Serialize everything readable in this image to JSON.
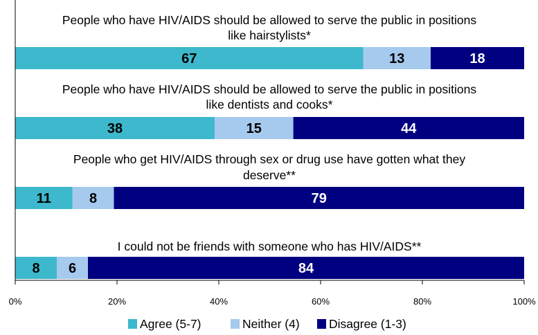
{
  "chart_data": {
    "type": "bar",
    "orientation": "horizontal",
    "stacked": true,
    "title": "",
    "xlabel": "",
    "ylabel": "",
    "xlim": [
      0,
      100
    ],
    "grid": false,
    "legend_position": "bottom",
    "x_ticks": [
      "0%",
      "20%",
      "40%",
      "60%",
      "80%",
      "100%"
    ],
    "categories": [
      [
        "People who have HIV/AIDS should be allowed to serve the public in positions",
        "like hairstylists*"
      ],
      [
        "People who have HIV/AIDS should be allowed to serve the public in positions",
        "like dentists and cooks*"
      ],
      [
        "People who get HIV/AIDS through sex or drug use have gotten what they",
        "deserve**"
      ],
      [
        "I could not be friends with someone who has HIV/AIDS**"
      ]
    ],
    "series": [
      {
        "name": "Agree (5-7)",
        "color": "#3db8cc",
        "label_color": "#000000",
        "values": [
          67,
          38,
          11,
          8
        ]
      },
      {
        "name": "Neither (4)",
        "color": "#a6c9ee",
        "label_color": "#000000",
        "values": [
          13,
          15,
          8,
          6
        ]
      },
      {
        "name": "Disagree (1-3)",
        "color": "#000080",
        "label_color": "#ffffff",
        "values": [
          18,
          44,
          79,
          84
        ]
      }
    ]
  }
}
